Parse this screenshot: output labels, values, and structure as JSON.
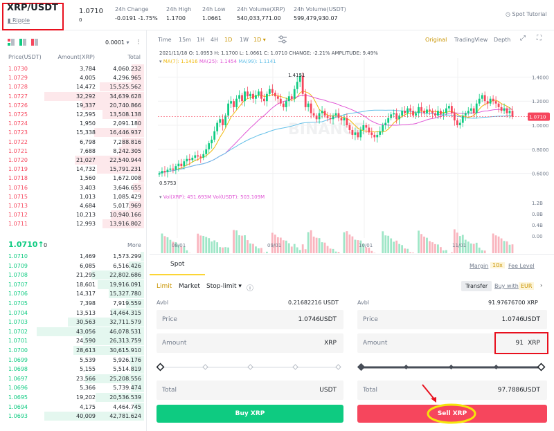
{
  "header": {
    "pair": "XRP/USDT",
    "coin_link": "Ripple",
    "last_price": "1.0710",
    "last_price_sub": "0",
    "change_label": "24h Change",
    "change_value": "-0.0191 -1.75%",
    "high_label": "24h High",
    "high_value": "1.1700",
    "low_label": "24h Low",
    "low_value": "1.0661",
    "vol_xrp_label": "24h Volume(XRP)",
    "vol_xrp_value": "540,033,771.00",
    "vol_usdt_label": "24h Volume(USDT)",
    "vol_usdt_value": "599,479,930.07",
    "tutorial": "Spot Tutorial"
  },
  "orderbook": {
    "precision": "0.0001",
    "col_price": "Price(USDT)",
    "col_amount": "Amount(XRP)",
    "col_total": "Total",
    "asks": [
      [
        "1.0730",
        "3,784",
        "4,060.232"
      ],
      [
        "1.0729",
        "4,005",
        "4,296.965"
      ],
      [
        "1.0728",
        "14,472",
        "15,525.562"
      ],
      [
        "1.0727",
        "32,292",
        "34,639.628"
      ],
      [
        "1.0726",
        "19,337",
        "20,740.866"
      ],
      [
        "1.0725",
        "12,595",
        "13,508.138"
      ],
      [
        "1.0724",
        "1,950",
        "2,091.180"
      ],
      [
        "1.0723",
        "15,338",
        "16,446.937"
      ],
      [
        "1.0722",
        "6,798",
        "7,288.816"
      ],
      [
        "1.0721",
        "7,688",
        "8,242.305"
      ],
      [
        "1.0720",
        "21,027",
        "22,540.944"
      ],
      [
        "1.0719",
        "14,732",
        "15,791.231"
      ],
      [
        "1.0718",
        "1,560",
        "1,672.008"
      ],
      [
        "1.0716",
        "3,403",
        "3,646.655"
      ],
      [
        "1.0715",
        "1,013",
        "1,085.429"
      ],
      [
        "1.0713",
        "4,684",
        "5,017.969"
      ],
      [
        "1.0712",
        "10,213",
        "10,940.166"
      ],
      [
        "1.0711",
        "12,993",
        "13,916.802"
      ]
    ],
    "ask_depth": [
      0.09,
      0.09,
      0.32,
      0.72,
      0.45,
      0.3,
      0.05,
      0.36,
      0.16,
      0.18,
      0.5,
      0.34,
      0.04,
      0.08,
      0.03,
      0.11,
      0.24,
      0.3
    ],
    "mid_price": "1.0710",
    "mid_arrow": "↑",
    "mid_sub": "0",
    "more": "More",
    "bids": [
      [
        "1.0710",
        "1,469",
        "1,573.299"
      ],
      [
        "1.0709",
        "6,085",
        "6,516.426"
      ],
      [
        "1.0708",
        "21,295",
        "22,802.686"
      ],
      [
        "1.0707",
        "18,601",
        "19,916.091"
      ],
      [
        "1.0706",
        "14,317",
        "15,327.780"
      ],
      [
        "1.0705",
        "7,398",
        "7,919.559"
      ],
      [
        "1.0704",
        "13,513",
        "14,464.315"
      ],
      [
        "1.0703",
        "30,563",
        "32,711.579"
      ],
      [
        "1.0702",
        "43,056",
        "46,078.531"
      ],
      [
        "1.0701",
        "24,590",
        "26,313.759"
      ],
      [
        "1.0700",
        "28,613",
        "30,615.910"
      ],
      [
        "1.0699",
        "5,539",
        "5,926.176"
      ],
      [
        "1.0698",
        "5,155",
        "5,514.819"
      ],
      [
        "1.0697",
        "23,566",
        "25,208.556"
      ],
      [
        "1.0696",
        "5,366",
        "5,739.474"
      ],
      [
        "1.0695",
        "19,202",
        "20,536.539"
      ],
      [
        "1.0694",
        "4,175",
        "4,464.745"
      ],
      [
        "1.0693",
        "40,009",
        "42,781.624"
      ]
    ],
    "bid_depth": [
      0.03,
      0.14,
      0.49,
      0.43,
      0.33,
      0.17,
      0.31,
      0.71,
      1.0,
      0.57,
      0.66,
      0.13,
      0.12,
      0.55,
      0.12,
      0.45,
      0.1,
      0.93
    ]
  },
  "chart": {
    "intervals": [
      "Time",
      "15m",
      "1H",
      "4H",
      "1D",
      "1W"
    ],
    "active_interval": "1D",
    "views": [
      "Original",
      "TradingView",
      "Depth"
    ],
    "ohlc_line": "2021/11/18 O: 1.0953 H: 1.1700 L: 1.0661 C: 1.0710 CHANGE: -2.21% AMPLITUDE: 9.49%",
    "ma7": "MA(7): 1.1416",
    "ma25": "MA(25): 1.1454",
    "ma99": "MA(99): 1.1141",
    "vol_line_a": "Vol(XRP): 451.693M",
    "vol_line_b": "Vol(USDT): 503.109M",
    "high_marker": "1.4151",
    "low_marker": "0.5753",
    "current_price": "1.0710",
    "price_ticks": [
      "1.4000",
      "1.2000",
      "1.0000",
      "0.8000",
      "0.6000"
    ],
    "vol_ticks": [
      "1.2B",
      "0.8B",
      "0.4B",
      "0.00"
    ],
    "date_ticks": [
      "08/01",
      "09/01",
      "10/01",
      "11/01"
    ],
    "watermark": "BINANCE",
    "colors": {
      "up": "#0ecb81",
      "down": "#f6465d",
      "ma7": "#f0b90b",
      "ma25": "#e056d5",
      "ma99": "#64c0e8"
    },
    "closes": [
      0.6,
      0.62,
      0.61,
      0.63,
      0.64,
      0.63,
      0.66,
      0.68,
      0.66,
      0.7,
      0.72,
      0.71,
      0.73,
      0.75,
      0.74,
      0.73,
      0.76,
      0.8,
      0.85,
      0.88,
      0.95,
      1.02,
      1.05,
      1.0,
      1.08,
      1.18,
      1.2,
      1.15,
      1.22,
      1.25,
      1.2,
      1.28,
      1.24,
      1.26,
      1.22,
      1.25,
      1.28,
      1.22,
      1.2,
      1.26,
      1.3,
      1.27,
      1.24,
      1.22,
      1.18,
      1.15,
      1.2,
      1.24,
      1.22,
      1.3,
      1.36,
      1.41,
      1.26,
      1.15,
      1.18,
      1.1,
      1.08,
      1.05,
      1.1,
      1.12,
      1.08,
      1.06,
      1.05,
      1.08,
      1.1,
      1.06,
      1.04,
      1.06,
      1.0,
      0.96,
      0.92,
      0.94,
      0.9,
      0.96,
      1.0,
      0.98,
      0.94,
      0.92,
      0.9,
      0.92,
      0.95,
      1.0,
      1.02,
      1.06,
      1.09,
      1.1,
      1.05,
      1.08,
      1.12,
      1.1,
      1.14,
      1.12,
      1.08,
      1.1,
      1.15,
      1.12,
      1.1,
      1.13,
      1.12,
      1.1,
      1.08,
      1.12,
      1.09,
      1.1,
      1.14,
      1.16,
      1.1,
      1.04,
      1.0,
      1.02,
      1.08,
      1.1,
      1.12,
      1.14,
      1.1,
      1.18,
      1.22,
      1.25,
      1.2,
      1.18,
      1.22,
      1.2,
      1.18,
      1.15,
      1.12,
      1.14,
      1.1,
      1.12,
      1.07
    ]
  },
  "trade": {
    "tab": "Spot",
    "margin": "Margin",
    "leverage": "10x",
    "fee_level": "Fee Level",
    "order_types": [
      "Limit",
      "Market",
      "Stop-limit"
    ],
    "transfer": "Transfer",
    "buy_with": "Buy with",
    "buy_with_currency": "EUR",
    "buy": {
      "avbl_label": "Avbl",
      "avbl_value": "0.21682216 USDT",
      "price_label": "Price",
      "price_value": "1.0746",
      "price_unit": "USDT",
      "amount_label": "Amount",
      "amount_value": "",
      "amount_unit": "XRP",
      "total_label": "Total",
      "total_value": "",
      "total_unit": "USDT",
      "button": "Buy XRP"
    },
    "sell": {
      "avbl_label": "Avbl",
      "avbl_value": "91.97676700 XRP",
      "price_label": "Price",
      "price_value": "1.0746",
      "price_unit": "USDT",
      "amount_label": "Amount",
      "amount_value": "91",
      "amount_unit": "XRP",
      "total_label": "Total",
      "total_value": "97.7886",
      "total_unit": "USDT",
      "button": "Sell XRP"
    },
    "buy_slider_fraction": 0.0,
    "sell_slider_fraction": 1.0
  }
}
